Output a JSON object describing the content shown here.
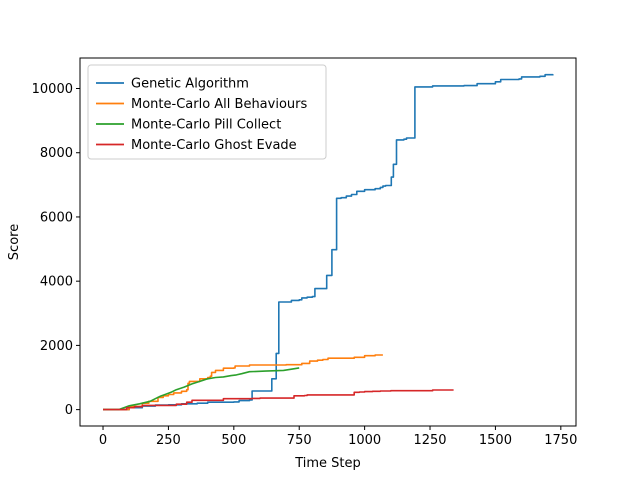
{
  "chart_data": {
    "type": "line",
    "title": "",
    "xlabel": "Time Step",
    "ylabel": "Score",
    "xlim": [
      -88,
      1808
    ],
    "ylim": [
      -510,
      10950
    ],
    "xticks": [
      0,
      250,
      500,
      750,
      1000,
      1250,
      1500,
      1750
    ],
    "yticks": [
      0,
      2000,
      4000,
      6000,
      8000,
      10000
    ],
    "grid": false,
    "legend_position": "top-left",
    "series": [
      {
        "name": "Genetic Algorithm",
        "color": "#1f77b4",
        "step": true,
        "points": [
          [
            0,
            0
          ],
          [
            60,
            0
          ],
          [
            100,
            60
          ],
          [
            150,
            110
          ],
          [
            200,
            140
          ],
          [
            250,
            150
          ],
          [
            300,
            180
          ],
          [
            360,
            200
          ],
          [
            400,
            230
          ],
          [
            500,
            240
          ],
          [
            520,
            280
          ],
          [
            560,
            300
          ],
          [
            570,
            580
          ],
          [
            640,
            580
          ],
          [
            645,
            960
          ],
          [
            660,
            960
          ],
          [
            662,
            1750
          ],
          [
            670,
            1750
          ],
          [
            672,
            3350
          ],
          [
            700,
            3350
          ],
          [
            720,
            3400
          ],
          [
            750,
            3420
          ],
          [
            760,
            3480
          ],
          [
            780,
            3500
          ],
          [
            800,
            3520
          ],
          [
            810,
            3770
          ],
          [
            850,
            3770
          ],
          [
            855,
            4180
          ],
          [
            870,
            4180
          ],
          [
            875,
            4980
          ],
          [
            890,
            4980
          ],
          [
            893,
            6580
          ],
          [
            910,
            6600
          ],
          [
            930,
            6650
          ],
          [
            950,
            6700
          ],
          [
            970,
            6800
          ],
          [
            1000,
            6850
          ],
          [
            1040,
            6880
          ],
          [
            1060,
            6920
          ],
          [
            1070,
            6960
          ],
          [
            1080,
            6980
          ],
          [
            1100,
            6980
          ],
          [
            1102,
            7240
          ],
          [
            1108,
            7240
          ],
          [
            1110,
            7640
          ],
          [
            1120,
            7640
          ],
          [
            1122,
            8400
          ],
          [
            1150,
            8420
          ],
          [
            1160,
            8460
          ],
          [
            1190,
            8460
          ],
          [
            1192,
            10050
          ],
          [
            1250,
            10050
          ],
          [
            1260,
            10080
          ],
          [
            1380,
            10090
          ],
          [
            1430,
            10150
          ],
          [
            1500,
            10210
          ],
          [
            1520,
            10280
          ],
          [
            1590,
            10300
          ],
          [
            1600,
            10360
          ],
          [
            1670,
            10380
          ],
          [
            1690,
            10430
          ],
          [
            1720,
            10440
          ]
        ]
      },
      {
        "name": "Monte-Carlo All Behaviours",
        "color": "#ff7f0e",
        "step": true,
        "points": [
          [
            0,
            0
          ],
          [
            60,
            0
          ],
          [
            100,
            100
          ],
          [
            150,
            200
          ],
          [
            175,
            260
          ],
          [
            210,
            380
          ],
          [
            230,
            430
          ],
          [
            250,
            470
          ],
          [
            270,
            520
          ],
          [
            300,
            570
          ],
          [
            320,
            620
          ],
          [
            325,
            820
          ],
          [
            330,
            880
          ],
          [
            370,
            960
          ],
          [
            400,
            1000
          ],
          [
            410,
            1040
          ],
          [
            415,
            1160
          ],
          [
            430,
            1220
          ],
          [
            460,
            1290
          ],
          [
            500,
            1300
          ],
          [
            505,
            1360
          ],
          [
            560,
            1390
          ],
          [
            600,
            1390
          ],
          [
            700,
            1400
          ],
          [
            760,
            1440
          ],
          [
            790,
            1510
          ],
          [
            820,
            1540
          ],
          [
            840,
            1560
          ],
          [
            860,
            1600
          ],
          [
            960,
            1630
          ],
          [
            1000,
            1680
          ],
          [
            1040,
            1700
          ],
          [
            1070,
            1700
          ]
        ]
      },
      {
        "name": "Monte-Carlo Pill Collect",
        "color": "#2ca02c",
        "step": false,
        "points": [
          [
            0,
            0
          ],
          [
            60,
            0
          ],
          [
            100,
            120
          ],
          [
            140,
            180
          ],
          [
            180,
            260
          ],
          [
            200,
            340
          ],
          [
            220,
            420
          ],
          [
            240,
            480
          ],
          [
            260,
            540
          ],
          [
            280,
            620
          ],
          [
            310,
            700
          ],
          [
            340,
            800
          ],
          [
            370,
            880
          ],
          [
            400,
            960
          ],
          [
            430,
            1000
          ],
          [
            460,
            1020
          ],
          [
            490,
            1060
          ],
          [
            510,
            1080
          ],
          [
            530,
            1120
          ],
          [
            560,
            1180
          ],
          [
            620,
            1200
          ],
          [
            690,
            1220
          ],
          [
            720,
            1260
          ],
          [
            750,
            1300
          ]
        ]
      },
      {
        "name": "Monte-Carlo Ghost Evade",
        "color": "#d62728",
        "step": true,
        "points": [
          [
            0,
            0
          ],
          [
            60,
            0
          ],
          [
            90,
            60
          ],
          [
            120,
            90
          ],
          [
            150,
            130
          ],
          [
            260,
            130
          ],
          [
            280,
            170
          ],
          [
            320,
            230
          ],
          [
            340,
            290
          ],
          [
            450,
            290
          ],
          [
            460,
            340
          ],
          [
            570,
            350
          ],
          [
            600,
            360
          ],
          [
            720,
            360
          ],
          [
            730,
            430
          ],
          [
            770,
            440
          ],
          [
            780,
            460
          ],
          [
            940,
            460
          ],
          [
            960,
            540
          ],
          [
            980,
            550
          ],
          [
            1000,
            560
          ],
          [
            1030,
            570
          ],
          [
            1060,
            580
          ],
          [
            1100,
            590
          ],
          [
            1250,
            590
          ],
          [
            1260,
            610
          ],
          [
            1340,
            610
          ]
        ]
      }
    ]
  }
}
